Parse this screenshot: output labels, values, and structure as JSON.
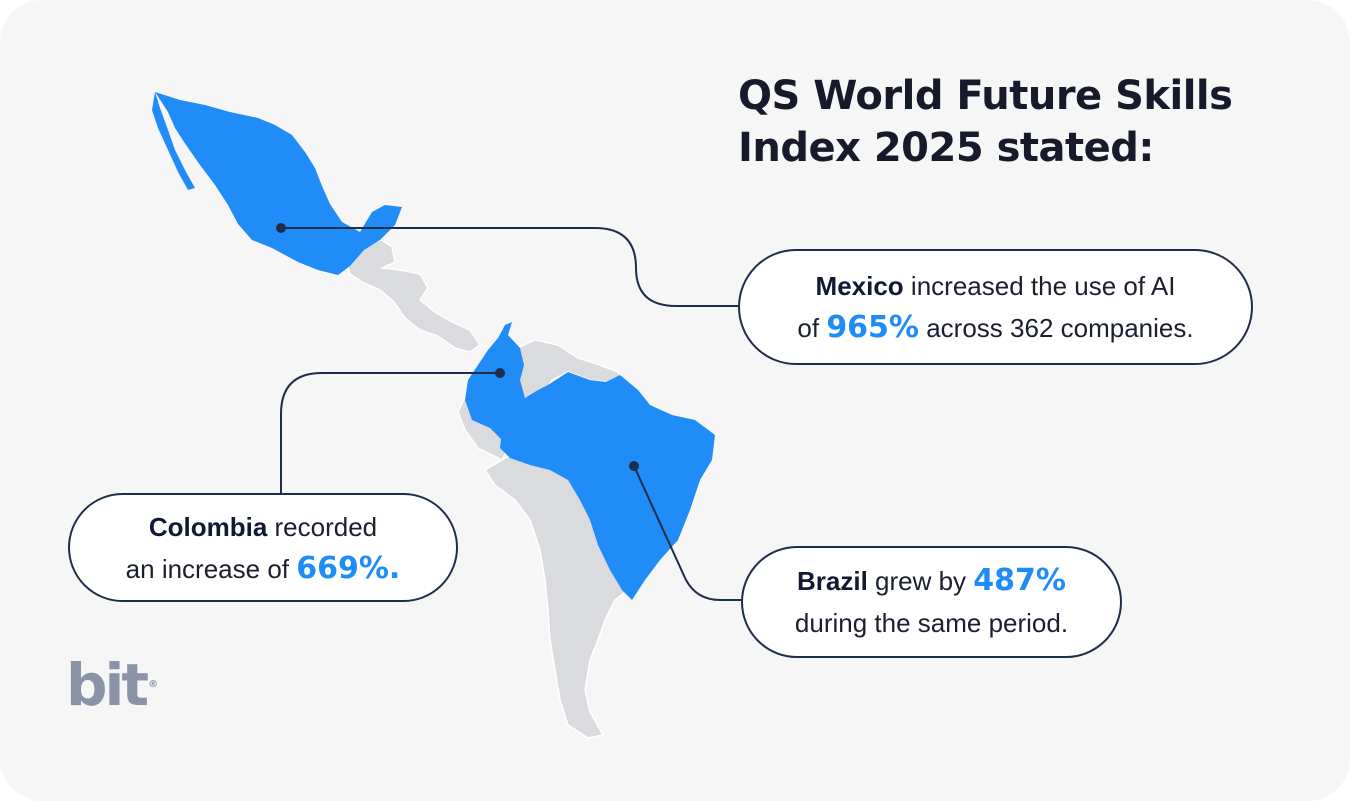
{
  "title": {
    "line1": "QS World Future Skills",
    "line2": "Index 2025 stated:"
  },
  "colors": {
    "highlight_country": "#1f8cf7",
    "other_country": "#dadbde",
    "percent_text": "#1f8cf7",
    "leader_line": "#1f2d4a",
    "background": "#f6f6f7"
  },
  "callouts": {
    "mexico": {
      "country": "Mexico",
      "text_before": " increased the use of AI",
      "text_mid": "of ",
      "percent": "965%",
      "text_after": " across 362 companies."
    },
    "colombia": {
      "country": "Colombia",
      "text_before": " recorded",
      "text_mid": "an increase of ",
      "percent": "669%."
    },
    "brazil": {
      "country": "Brazil",
      "text_before": " grew by ",
      "percent": "487%",
      "text_after": "during the same period."
    }
  },
  "map": {
    "highlighted_countries": [
      "Mexico",
      "Colombia",
      "Brazil"
    ],
    "region": "Latin America"
  },
  "logo": {
    "text": "bit",
    "mark": "®"
  }
}
